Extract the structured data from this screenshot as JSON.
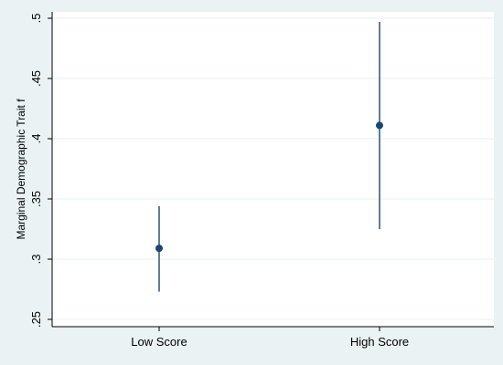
{
  "chart_data": {
    "type": "scatter",
    "title": "",
    "xlabel": "",
    "ylabel": "Marginal Demographic Trait f",
    "categories": [
      "Low Score",
      "High Score"
    ],
    "points": [
      {
        "category": "Low Score",
        "estimate": 0.309,
        "ci_low": 0.273,
        "ci_high": 0.344
      },
      {
        "category": "High Score",
        "estimate": 0.411,
        "ci_low": 0.325,
        "ci_high": 0.497
      }
    ],
    "ylim": [
      0.25,
      0.5
    ],
    "yticks": [
      {
        "value": 0.25,
        "label": ".25"
      },
      {
        "value": 0.3,
        "label": ".3"
      },
      {
        "value": 0.35,
        "label": ".35"
      },
      {
        "value": 0.4,
        "label": ".4"
      },
      {
        "value": 0.45,
        "label": ".45"
      },
      {
        "value": 0.5,
        "label": ".5"
      }
    ],
    "grid": true,
    "legend": "none",
    "colors": {
      "marker": "#1a476f",
      "background": "#eaf2f3",
      "plot_area": "#ffffff",
      "grid": "#eaf2f3"
    }
  }
}
